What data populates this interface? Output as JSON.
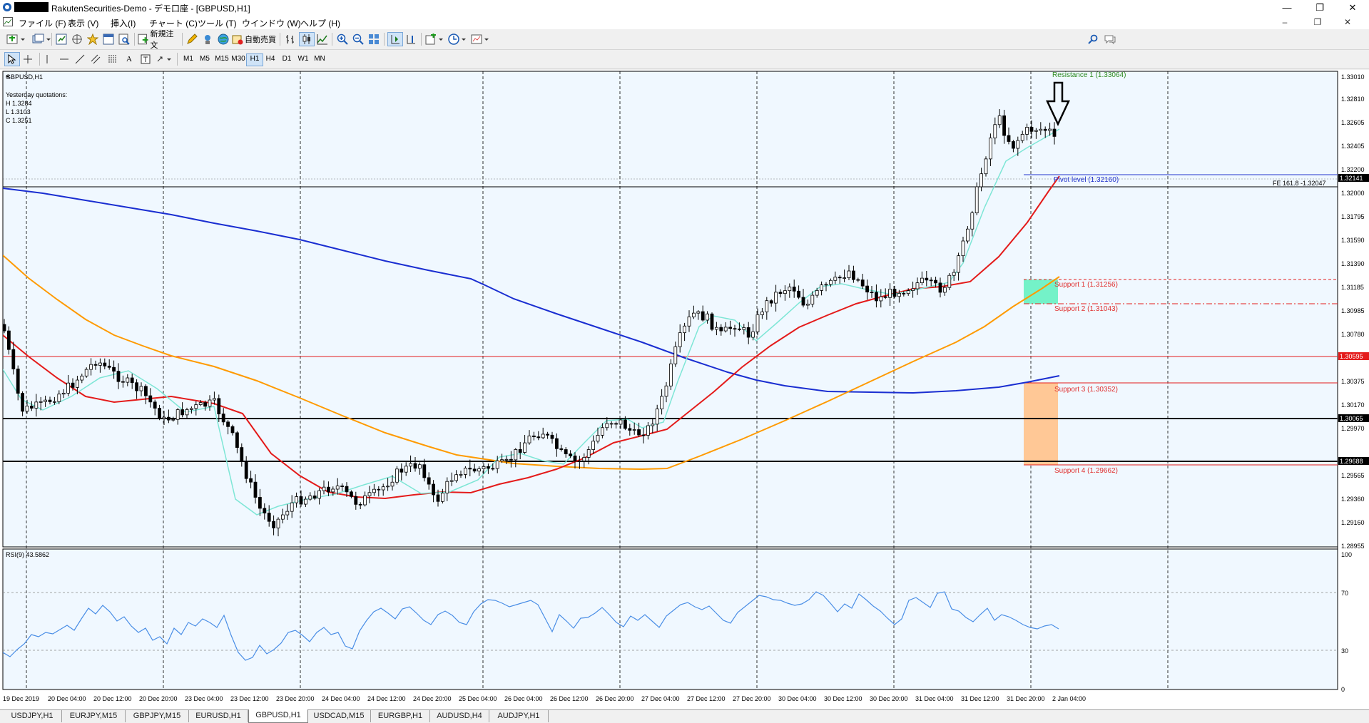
{
  "window": {
    "title": "RakutenSecurities-Demo - デモ口座 - [GBPUSD,H1]",
    "controls": {
      "minimize": "—",
      "restore": "❐",
      "close": "✕"
    }
  },
  "menu": [
    "ファイル (F)",
    "表示 (V)",
    "挿入(I)",
    "チャート (C)",
    "ツール (T)",
    "ウインドウ (W)",
    "ヘルプ (H)"
  ],
  "toolbar": {
    "new_order": "新規注文",
    "auto_trading": "自動売買",
    "text_tool": "A"
  },
  "timeframes": [
    "M1",
    "M5",
    "M15",
    "M30",
    "H1",
    "H4",
    "D1",
    "W1",
    "MN"
  ],
  "selected_timeframe": "H1",
  "chart": {
    "symbol_label": "GBPUSD,H1",
    "yesterday_label": "Yesterday quotations:",
    "high": "H 1.3284",
    "low": "L 1.3103",
    "close": "C 1.3251",
    "price_ticks": [
      "1.33010",
      "1.32810",
      "1.32605",
      "1.32405",
      "1.32200",
      "1.32000",
      "1.31795",
      "1.31590",
      "1.31390",
      "1.31185",
      "1.30985",
      "1.30780",
      "1.30375",
      "1.30170",
      "1.29970",
      "1.29565",
      "1.29360",
      "1.29160",
      "1.28955"
    ],
    "price_tags": {
      "current": "1.32141",
      "red_line": "1.30595",
      "black_line_1": "1.30065",
      "black_line_2": "1.29688"
    },
    "annotations": {
      "resistance_1": "Resistance 1 (1.33064)",
      "pivot": "Pivot level (1.32160)",
      "fe": "FE 161.8 -1.32047",
      "support_1": "Support 1 (1.31256)",
      "support_2": "Support 2 (1.31043)",
      "support_3": "Support 3 (1.30352)",
      "support_4": "Support 4 (1.29662)"
    },
    "colors": {
      "background": "#f0f8ff",
      "ma_blue": "#1a2ed1",
      "ma_orange": "#ff9a00",
      "ma_red": "#e41b1b",
      "ma_cyan": "#7ee6d6",
      "resistance_text": "#2e8b22",
      "pivot_text": "#2233cc",
      "support_text": "#e03030",
      "zone_green": "#74f2c8",
      "zone_orange": "#ffc896",
      "rsi_line": "#4a8ee6"
    },
    "time_labels": [
      "19 Dec 2019",
      "20 Dec 04:00",
      "20 Dec 12:00",
      "20 Dec 20:00",
      "23 Dec 04:00",
      "23 Dec 12:00",
      "23 Dec 20:00",
      "24 Dec 04:00",
      "24 Dec 12:00",
      "24 Dec 20:00",
      "25 Dec 04:00",
      "26 Dec 04:00",
      "26 Dec 12:00",
      "26 Dec 20:00",
      "27 Dec 04:00",
      "27 Dec 12:00",
      "27 Dec 20:00",
      "30 Dec 04:00",
      "30 Dec 12:00",
      "30 Dec 20:00",
      "31 Dec 04:00",
      "31 Dec 12:00",
      "31 Dec 20:00",
      "2 Jan 04:00"
    ]
  },
  "rsi": {
    "label": "RSI(9) 43.5862",
    "levels": [
      "100",
      "70",
      "30",
      "0"
    ]
  },
  "tabs": [
    "USDJPY,H1",
    "EURJPY,M15",
    "GBPJPY,M15",
    "EURUSD,H1",
    "GBPUSD,H1",
    "USDCAD,M15",
    "EURGBP,H1",
    "AUDUSD,H4",
    "AUDJPY,H1"
  ],
  "active_tab": "GBPUSD,H1"
}
